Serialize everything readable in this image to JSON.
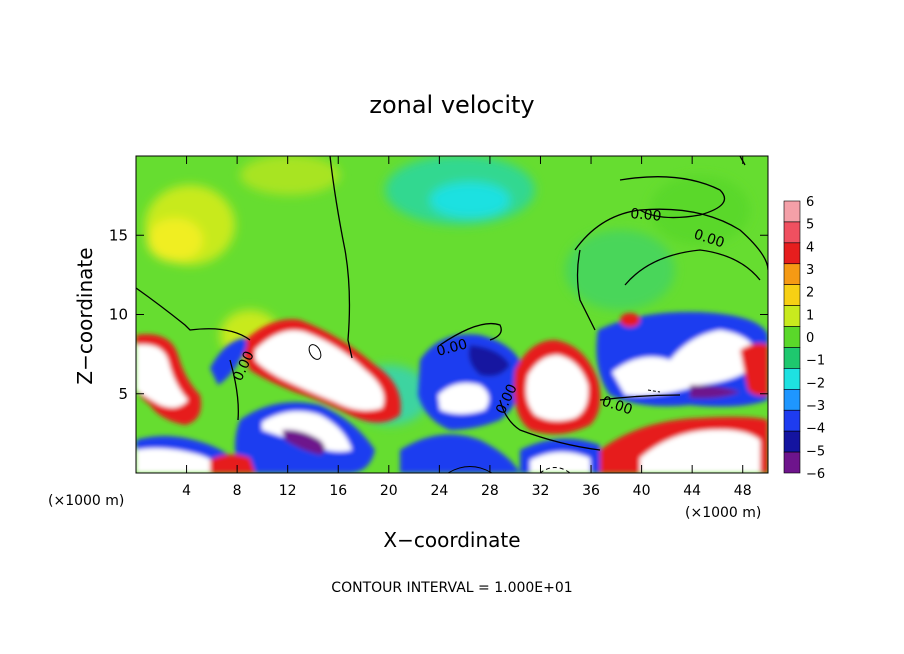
{
  "chart_data": {
    "type": "heatmap",
    "title": "zonal velocity",
    "xlabel": "X−coordinate",
    "ylabel": "Z−coordinate",
    "x_unit": "(×1000 m)",
    "z_unit": "(×1000 m)",
    "xlim": [
      0,
      50
    ],
    "ylim": [
      0,
      20
    ],
    "x_ticks": [
      "4",
      "8",
      "12",
      "16",
      "20",
      "24",
      "28",
      "32",
      "36",
      "40",
      "44",
      "48"
    ],
    "y_ticks": [
      "5",
      "10",
      "15"
    ],
    "colorbar": {
      "range": [
        -6,
        6
      ],
      "labels": [
        "6",
        "5",
        "4",
        "3",
        "2",
        "1",
        "0",
        "−1",
        "−2",
        "−3",
        "−4",
        "−5",
        "−6"
      ],
      "colors": [
        "#f4a0a8",
        "#f05060",
        "#e61e1e",
        "#f59a14",
        "#f7d014",
        "#c8ea1e",
        "#5ad82a",
        "#1ec86e",
        "#1ee1e1",
        "#1e96ff",
        "#1e3cf0",
        "#1414a0",
        "#6e148c"
      ]
    },
    "contour_labels": [
      "0.00",
      "0.00",
      "0.00",
      "0.00",
      "0.00",
      "0.00"
    ],
    "footer": "CONTOUR INTERVAL = 1.000E+01"
  }
}
